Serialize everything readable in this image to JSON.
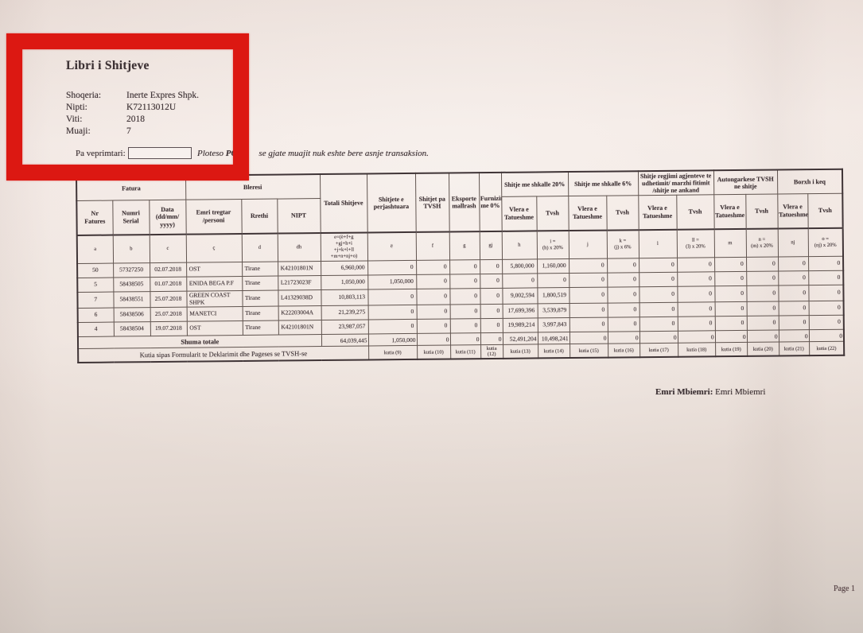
{
  "document": {
    "title": "Libri i Shitjeve",
    "fields": [
      {
        "label": "Shoqeria:",
        "value": "Inerte Expres Shpk."
      },
      {
        "label": "Nipti:",
        "value": "K72113012U"
      },
      {
        "label": "Viti:",
        "value": "2018"
      },
      {
        "label": "Muaji:",
        "value": "7"
      }
    ],
    "pa_veprimtari": {
      "label": "Pa veprimtari:",
      "input_value": "",
      "note_italic": "Ploteso",
      "note_bold": "PO",
      "note_rest": "se gjate muajit nuk eshte bere asnje transaksion."
    },
    "signature": {
      "label": "Emri Mbiemri:",
      "value": "Emri Mbiemri"
    },
    "page_label": "Page 1"
  },
  "annotation": {
    "box_color": "#dc1812"
  },
  "table": {
    "group_row": [
      {
        "label": "Fatura",
        "colspan": 3,
        "rowspan": 1
      },
      {
        "label": "Bleresi",
        "colspan": 3,
        "rowspan": 1
      },
      {
        "label": "Totali Shitjeve",
        "colspan": 1,
        "rowspan": 2
      },
      {
        "label": "Shitjete e perjashtuara",
        "colspan": 1,
        "rowspan": 2
      },
      {
        "label": "Shitjet pa TVSH",
        "colspan": 1,
        "rowspan": 2
      },
      {
        "label": "Eksporte mallrash",
        "colspan": 1,
        "rowspan": 2
      },
      {
        "label": "Furnizime me 0%",
        "colspan": 1,
        "rowspan": 2
      },
      {
        "label": "Shitje me shkalle 20%",
        "colspan": 2,
        "rowspan": 1
      },
      {
        "label": "Shitje me shkalle 6%",
        "colspan": 2,
        "rowspan": 1
      },
      {
        "label": "Shitje regjimi agjenteve te udhetimit/ marzhi fitimit /shitje ne ankand",
        "colspan": 2,
        "rowspan": 1
      },
      {
        "label": "Autongarkese TVSH ne shitje",
        "colspan": 2,
        "rowspan": 1
      },
      {
        "label": "Borxh i keq",
        "colspan": 2,
        "rowspan": 1
      }
    ],
    "name_row": [
      "Nr\nFatures",
      "Numri\nSerial",
      "Data\n(dd/mm/\nyyyy)",
      "Emri tregtar\n/personi",
      "Rrethi",
      "NIPT",
      "Vlera e\nTatueshme",
      "Tvsh",
      "Vlera e\nTatueshme",
      "Tvsh",
      "Vlera e\nTatueshme",
      "Tvsh",
      "Vlera e\nTatueshme",
      "Tvsh",
      "Vlera e\nTatueshme",
      "Tvsh"
    ],
    "letter_row": [
      "a",
      "b",
      "c",
      "ç",
      "d",
      "dh",
      "e=(ë+f+g\n+gj+h+i\n+j+k+l+ll\n+m+n+nj+o)",
      "ë",
      "f",
      "g",
      "gj",
      "h",
      "i =\n(h) x 20%",
      "j",
      "k =\n(j) x 6%",
      "l",
      "ll =\n(l) x 20%",
      "m",
      "n =\n(m) x 20%",
      "nj",
      "o =\n(nj) x 20%"
    ],
    "rows": [
      [
        "50",
        "57327250",
        "02.07.2018",
        "OST",
        "Tirane",
        "K42101801N",
        "6,960,000",
        "0",
        "0",
        "0",
        "0",
        "5,800,000",
        "1,160,000",
        "0",
        "0",
        "0",
        "0",
        "0",
        "0",
        "0",
        "0"
      ],
      [
        "5",
        "58438505",
        "01.07.2018",
        "ENIDA BEGA P.F",
        "Tirane",
        "L21723023F",
        "1,050,000",
        "1,050,000",
        "0",
        "0",
        "0",
        "0",
        "0",
        "0",
        "0",
        "0",
        "0",
        "0",
        "0",
        "0",
        "0"
      ],
      [
        "7",
        "58438551",
        "25.07.2018",
        "GREEN COAST SHPK",
        "Tirane",
        "L41329038D",
        "10,803,113",
        "0",
        "0",
        "0",
        "0",
        "9,002,594",
        "1,800,519",
        "0",
        "0",
        "0",
        "0",
        "0",
        "0",
        "0",
        "0"
      ],
      [
        "6",
        "58438506",
        "25.07.2018",
        "MANETCI",
        "Tirane",
        "K22203004A",
        "21,239,275",
        "0",
        "0",
        "0",
        "0",
        "17,699,396",
        "3,539,879",
        "0",
        "0",
        "0",
        "0",
        "0",
        "0",
        "0",
        "0"
      ],
      [
        "4",
        "58438504",
        "19.07.2018",
        "OST",
        "Tirane",
        "K42101801N",
        "23,987,057",
        "0",
        "0",
        "0",
        "0",
        "19,989,214",
        "3,997,843",
        "0",
        "0",
        "0",
        "0",
        "0",
        "0",
        "0",
        "0"
      ]
    ],
    "totals": {
      "label": "Shuma totale",
      "values": [
        "64,039,445",
        "1,050,000",
        "0",
        "0",
        "0",
        "52,491,204",
        "10,498,241",
        "0",
        "0",
        "0",
        "0",
        "0",
        "0",
        "0",
        "0"
      ]
    },
    "kutia": {
      "label": "Kutia sipas Formularit te Deklarimit dhe Pageses se TVSH-se",
      "cells": [
        "kutia (9)",
        "kutia (10)",
        "kutia (11)",
        "kutia (12)",
        "kutia (13)",
        "kutia (14)",
        "kutia (15)",
        "kutia (16)",
        "kutia (17)",
        "kutia (18)",
        "kutia (19)",
        "kutia (20)",
        "kutia (21)",
        "kutia (22)"
      ]
    }
  }
}
